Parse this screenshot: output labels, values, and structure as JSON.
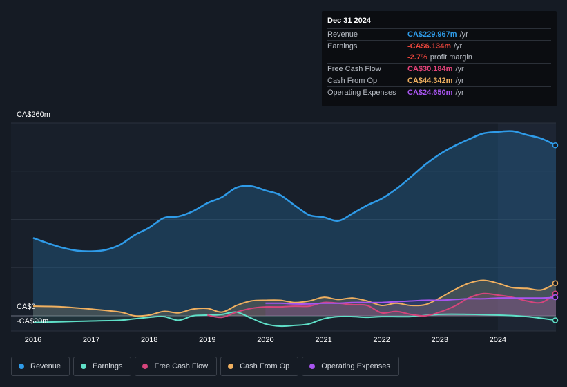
{
  "tooltip": {
    "date": "Dec 31 2024",
    "rows": [
      {
        "label": "Revenue",
        "value": "CA$229.967m",
        "unit": "/yr",
        "color": "#2f9be8"
      },
      {
        "label": "Earnings",
        "value": "-CA$6.134m",
        "unit": "/yr",
        "color": "#e8453c"
      },
      {
        "label": "",
        "value": "-2.7%",
        "unit": "profit margin",
        "color": "#e8453c"
      },
      {
        "label": "Free Cash Flow",
        "value": "CA$30.184m",
        "unit": "/yr",
        "color": "#e8457c"
      },
      {
        "label": "Cash From Op",
        "value": "CA$44.342m",
        "unit": "/yr",
        "color": "#f0b060"
      },
      {
        "label": "Operating Expenses",
        "value": "CA$24.650m",
        "unit": "/yr",
        "color": "#a855f0"
      }
    ]
  },
  "axis": {
    "top_label": "CA$260m",
    "zero_label": "CA$0",
    "neg_label": "-CA$20m"
  },
  "legend": [
    {
      "label": "Revenue",
      "color": "#2f9be8"
    },
    {
      "label": "Earnings",
      "color": "#5fe0c8"
    },
    {
      "label": "Free Cash Flow",
      "color": "#d6457c"
    },
    {
      "label": "Cash From Op",
      "color": "#f0b060"
    },
    {
      "label": "Operating Expenses",
      "color": "#a855f0"
    }
  ],
  "chart_data": {
    "type": "area",
    "title": "",
    "x_ticks": [
      "2016",
      "2017",
      "2018",
      "2019",
      "2020",
      "2021",
      "2022",
      "2023",
      "2024"
    ],
    "ylim": [
      -20,
      260
    ],
    "x_range": [
      2016.0,
      2025.0
    ],
    "series": [
      {
        "name": "Revenue",
        "color": "#2f9be8",
        "x": [
          2016.0,
          2016.25,
          2016.5,
          2016.75,
          2017.0,
          2017.25,
          2017.5,
          2017.75,
          2018.0,
          2018.25,
          2018.5,
          2018.75,
          2019.0,
          2019.25,
          2019.5,
          2019.75,
          2020.0,
          2020.25,
          2020.5,
          2020.75,
          2021.0,
          2021.25,
          2021.5,
          2021.75,
          2022.0,
          2022.25,
          2022.5,
          2022.75,
          2023.0,
          2023.25,
          2023.5,
          2023.75,
          2024.0,
          2024.25,
          2024.5,
          2024.75,
          2025.0
        ],
        "values": [
          105,
          98,
          92,
          88,
          87,
          89,
          96,
          109,
          119,
          132,
          134,
          141,
          152,
          160,
          173,
          175,
          169,
          163,
          149,
          136,
          133,
          128,
          138,
          149,
          158,
          171,
          187,
          204,
          218,
          229,
          238,
          246,
          248,
          249,
          244,
          239,
          230
        ]
      },
      {
        "name": "Earnings",
        "color": "#5fe0c8",
        "x": [
          2016.0,
          2016.5,
          2017.0,
          2017.5,
          2017.75,
          2018.0,
          2018.25,
          2018.5,
          2018.75,
          2019.0,
          2019.25,
          2019.5,
          2019.75,
          2020.0,
          2020.25,
          2020.5,
          2020.75,
          2021.0,
          2021.25,
          2021.5,
          2021.75,
          2022.0,
          2022.5,
          2023.0,
          2023.5,
          2024.0,
          2024.5,
          2025.0
        ],
        "values": [
          -9,
          -8,
          -7,
          -6,
          -4,
          -2,
          -1,
          -6,
          0,
          1,
          2,
          5,
          -3,
          -11,
          -14,
          -13,
          -11,
          -4,
          -1,
          -1,
          -2,
          -1,
          -1,
          2,
          2,
          1,
          -1,
          -6
        ]
      },
      {
        "name": "Free Cash Flow",
        "color": "#d6457c",
        "x": [
          2019.0,
          2019.25,
          2019.5,
          2019.75,
          2020.0,
          2020.25,
          2020.5,
          2020.75,
          2021.0,
          2021.25,
          2021.5,
          2021.75,
          2022.0,
          2022.25,
          2022.5,
          2022.75,
          2023.0,
          2023.25,
          2023.5,
          2023.75,
          2024.0,
          2024.25,
          2024.5,
          2024.75,
          2025.0
        ],
        "values": [
          1,
          -2,
          5,
          10,
          12,
          12,
          13,
          13,
          18,
          17,
          15,
          14,
          4,
          6,
          2,
          0,
          5,
          13,
          24,
          30,
          28,
          25,
          20,
          18,
          30
        ]
      },
      {
        "name": "Cash From Op",
        "color": "#f0b060",
        "x": [
          2016.0,
          2016.5,
          2017.0,
          2017.5,
          2017.75,
          2018.0,
          2018.25,
          2018.5,
          2018.75,
          2019.0,
          2019.25,
          2019.5,
          2019.75,
          2020.0,
          2020.25,
          2020.5,
          2020.75,
          2021.0,
          2021.25,
          2021.5,
          2021.75,
          2022.0,
          2022.25,
          2022.5,
          2022.75,
          2023.0,
          2023.25,
          2023.5,
          2023.75,
          2024.0,
          2024.25,
          2024.5,
          2024.75,
          2025.0
        ],
        "values": [
          13,
          12,
          9,
          5,
          0,
          1,
          6,
          4,
          9,
          10,
          5,
          14,
          20,
          21,
          21,
          18,
          20,
          25,
          22,
          24,
          20,
          14,
          17,
          14,
          15,
          24,
          35,
          44,
          48,
          44,
          38,
          37,
          35,
          44
        ]
      },
      {
        "name": "Operating Expenses",
        "color": "#a855f0",
        "x": [
          2020.0,
          2020.25,
          2020.5,
          2020.75,
          2021.0,
          2021.25,
          2021.5,
          2021.75,
          2022.0,
          2022.25,
          2022.5,
          2022.75,
          2023.0,
          2023.25,
          2023.5,
          2023.75,
          2024.0,
          2024.25,
          2024.5,
          2024.75,
          2025.0
        ],
        "values": [
          17,
          17,
          16,
          16,
          17,
          17,
          18,
          18,
          18,
          19,
          20,
          21,
          21,
          22,
          23,
          23,
          24,
          24,
          24,
          24,
          25
        ]
      }
    ]
  }
}
